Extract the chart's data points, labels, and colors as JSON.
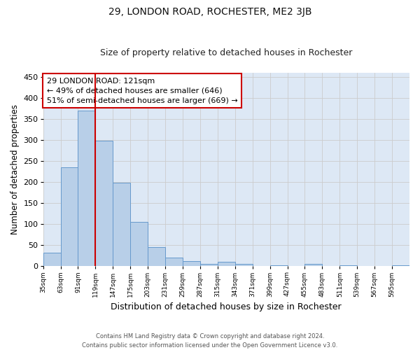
{
  "title": "29, LONDON ROAD, ROCHESTER, ME2 3JB",
  "subtitle": "Size of property relative to detached houses in Rochester",
  "xlabel": "Distribution of detached houses by size in Rochester",
  "ylabel": "Number of detached properties",
  "bar_values": [
    32,
    236,
    370,
    298,
    199,
    105,
    45,
    20,
    13,
    5,
    10,
    5,
    0,
    3,
    0,
    5,
    0,
    3,
    0,
    0,
    3
  ],
  "categories": [
    "35sqm",
    "63sqm",
    "91sqm",
    "119sqm",
    "147sqm",
    "175sqm",
    "203sqm",
    "231sqm",
    "259sqm",
    "287sqm",
    "315sqm",
    "343sqm",
    "371sqm",
    "399sqm",
    "427sqm",
    "455sqm",
    "483sqm",
    "511sqm",
    "539sqm",
    "567sqm",
    "595sqm"
  ],
  "bar_color": "#b8cfe8",
  "bar_edge_color": "#6699cc",
  "red_line_color": "#cc0000",
  "annotation_text": "29 LONDON ROAD: 121sqm\n← 49% of detached houses are smaller (646)\n51% of semi-detached houses are larger (669) →",
  "annotation_box_color": "#ffffff",
  "annotation_box_edge_color": "#cc0000",
  "ylim": [
    0,
    460
  ],
  "yticks": [
    0,
    50,
    100,
    150,
    200,
    250,
    300,
    350,
    400,
    450
  ],
  "grid_color": "#cccccc",
  "bg_color": "#dde8f5",
  "footer_line1": "Contains HM Land Registry data © Crown copyright and database right 2024.",
  "footer_line2": "Contains public sector information licensed under the Open Government Licence v3.0.",
  "title_fontsize": 10,
  "subtitle_fontsize": 9,
  "xlabel_fontsize": 9,
  "ylabel_fontsize": 8.5,
  "annotation_fontsize": 8
}
